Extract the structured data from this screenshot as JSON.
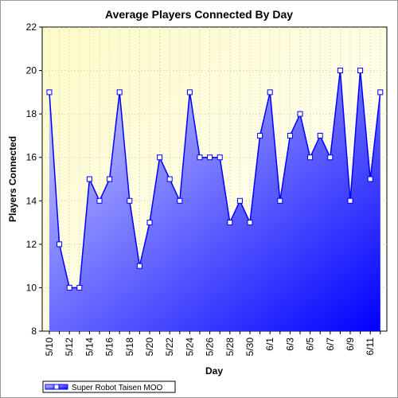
{
  "chart_data": {
    "type": "area",
    "title": "Average Players Connected By Day",
    "xlabel": "Day",
    "ylabel": "Players Connected",
    "ylim": [
      8,
      22
    ],
    "yticks": [
      8,
      10,
      12,
      14,
      16,
      18,
      20,
      22
    ],
    "x": [
      "5/10",
      "5/11",
      "5/12",
      "5/13",
      "5/14",
      "5/15",
      "5/16",
      "5/17",
      "5/18",
      "5/19",
      "5/20",
      "5/21",
      "5/22",
      "5/23",
      "5/24",
      "5/25",
      "5/26",
      "5/27",
      "5/28",
      "5/29",
      "5/30",
      "5/31",
      "6/1",
      "6/2",
      "6/3",
      "6/4",
      "6/5",
      "6/6",
      "6/7",
      "6/8",
      "6/9",
      "6/10",
      "6/11",
      "6/12"
    ],
    "xtick_labels": [
      "5/10",
      "5/12",
      "5/14",
      "5/16",
      "5/18",
      "5/20",
      "5/22",
      "5/24",
      "5/26",
      "5/28",
      "5/30",
      "6/1",
      "6/3",
      "6/5",
      "6/7",
      "6/9",
      "6/11"
    ],
    "series": [
      {
        "name": "Super Robot Taisen MOO",
        "values": [
          19,
          12,
          10,
          10,
          15,
          14,
          15,
          19,
          14,
          11,
          13,
          16,
          15,
          14,
          19,
          16,
          16,
          16,
          13,
          14,
          13,
          17,
          19,
          14,
          17,
          18,
          16,
          17,
          16,
          20,
          14,
          20,
          15,
          19
        ]
      }
    ],
    "grid": true,
    "legend": "bottom-left",
    "colors": {
      "line": "#0000ff",
      "fill_light": "#c4c8ff",
      "fill_dark": "#0000ff",
      "plot_bg_light": "#fffff0",
      "plot_bg_yellow": "#fdfbc8"
    }
  }
}
